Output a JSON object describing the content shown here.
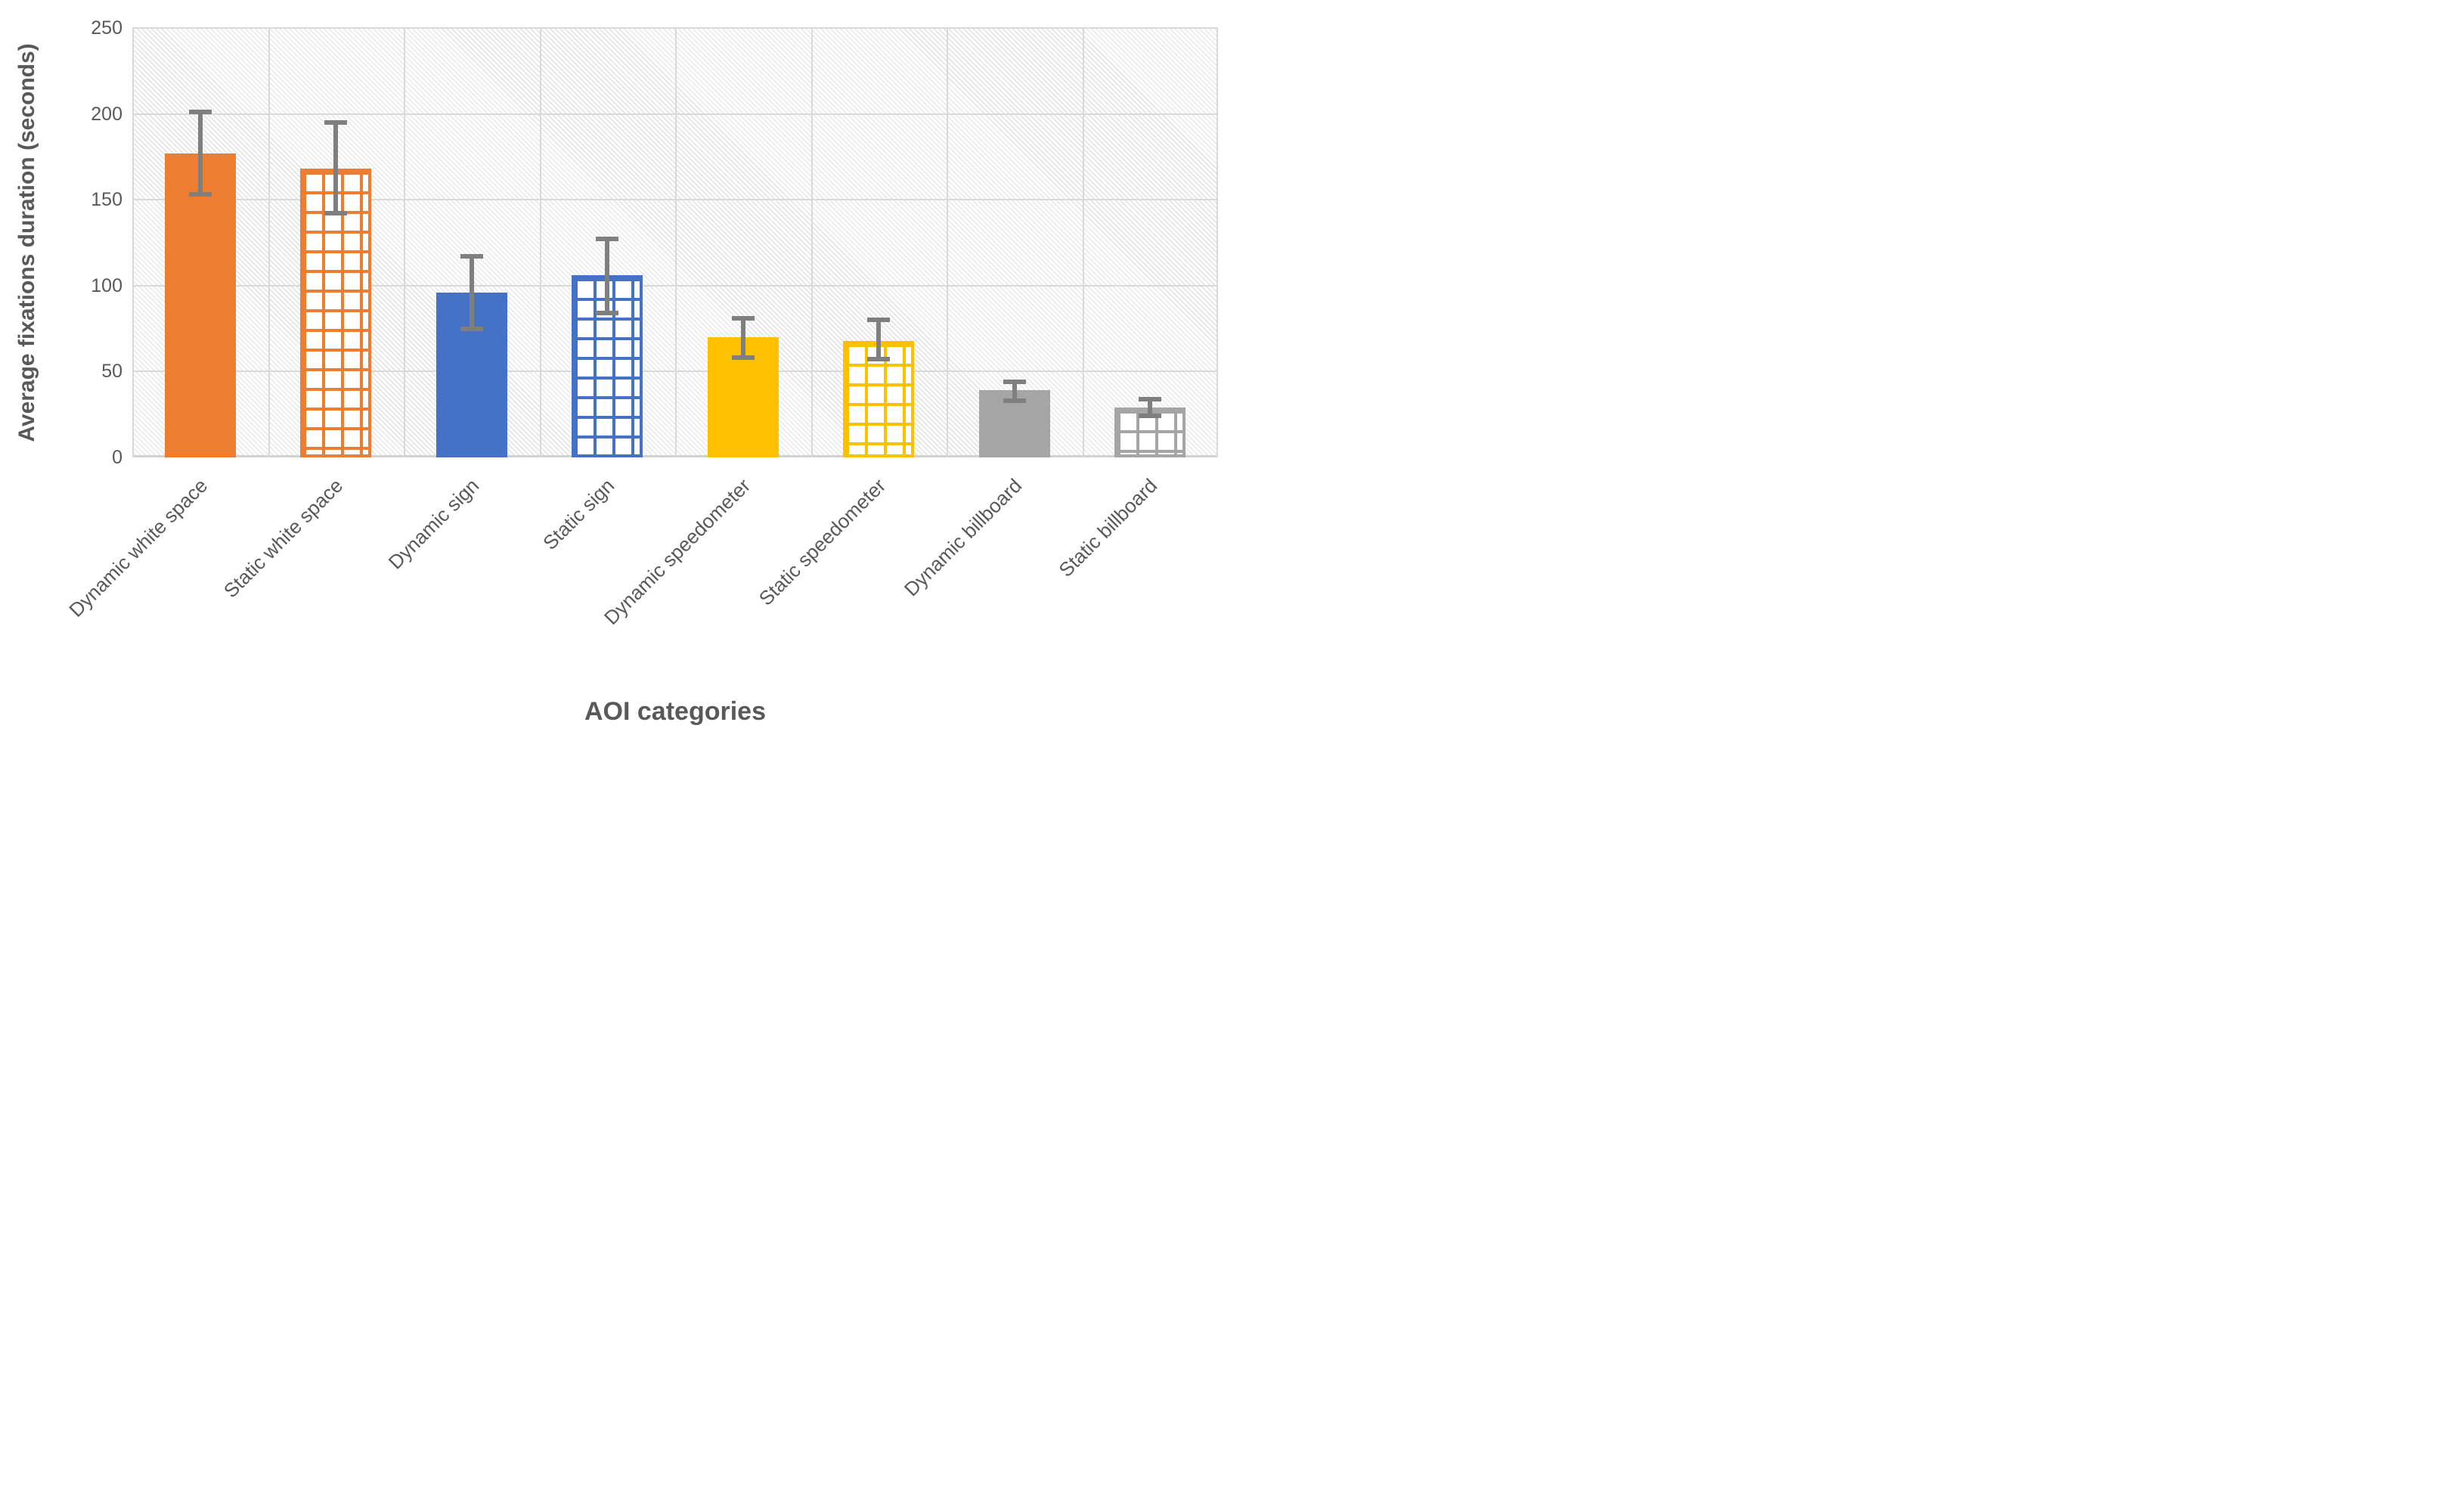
{
  "chart_data": {
    "type": "bar",
    "title": "",
    "xlabel": "AOI categories",
    "ylabel": "Average fixations duration (seconds)",
    "ylim": [
      0,
      250
    ],
    "yticks": [
      0,
      50,
      100,
      150,
      200,
      250
    ],
    "grid": "major horizontal and vertical light-gray gridlines",
    "legend_position": "none",
    "plot_background": "light downward-diagonal hatch pattern",
    "categories": [
      "Dynamic white space",
      "Static white space",
      "Dynamic sign",
      "Static sign",
      "Dynamic speedometer",
      "Static speedometer",
      "Dynamic billboard",
      "Static billboard"
    ],
    "values": [
      177,
      168,
      96,
      106,
      70,
      68,
      39,
      29
    ],
    "error_upper": [
      201,
      195,
      117,
      127,
      81,
      80,
      44,
      34
    ],
    "error_lower": [
      153,
      142,
      75,
      84,
      58,
      57,
      33,
      24
    ],
    "bar_styles": [
      {
        "category": "Dynamic white space",
        "fill": "solid",
        "color": "#ED7D31"
      },
      {
        "category": "Static white space",
        "fill": "grid",
        "color": "#ED7D31"
      },
      {
        "category": "Dynamic sign",
        "fill": "solid",
        "color": "#4472C4"
      },
      {
        "category": "Static sign",
        "fill": "grid",
        "color": "#4472C4"
      },
      {
        "category": "Dynamic speedometer",
        "fill": "solid",
        "color": "#FFC000"
      },
      {
        "category": "Static speedometer",
        "fill": "grid",
        "color": "#FFC000"
      },
      {
        "category": "Dynamic billboard",
        "fill": "solid",
        "color": "#A5A5A5"
      },
      {
        "category": "Static billboard",
        "fill": "grid",
        "color": "#A5A5A5"
      }
    ]
  },
  "colors": {
    "axis_text": "#595959",
    "gridline": "#D9D9D9",
    "error_bar": "#7F7F7F",
    "hatch": "#BDBDBD",
    "background": "#FFFFFF",
    "accent_orange": "#ED7D31",
    "accent_blue": "#4472C4",
    "accent_yellow": "#FFC000",
    "accent_gray": "#A5A5A5"
  }
}
